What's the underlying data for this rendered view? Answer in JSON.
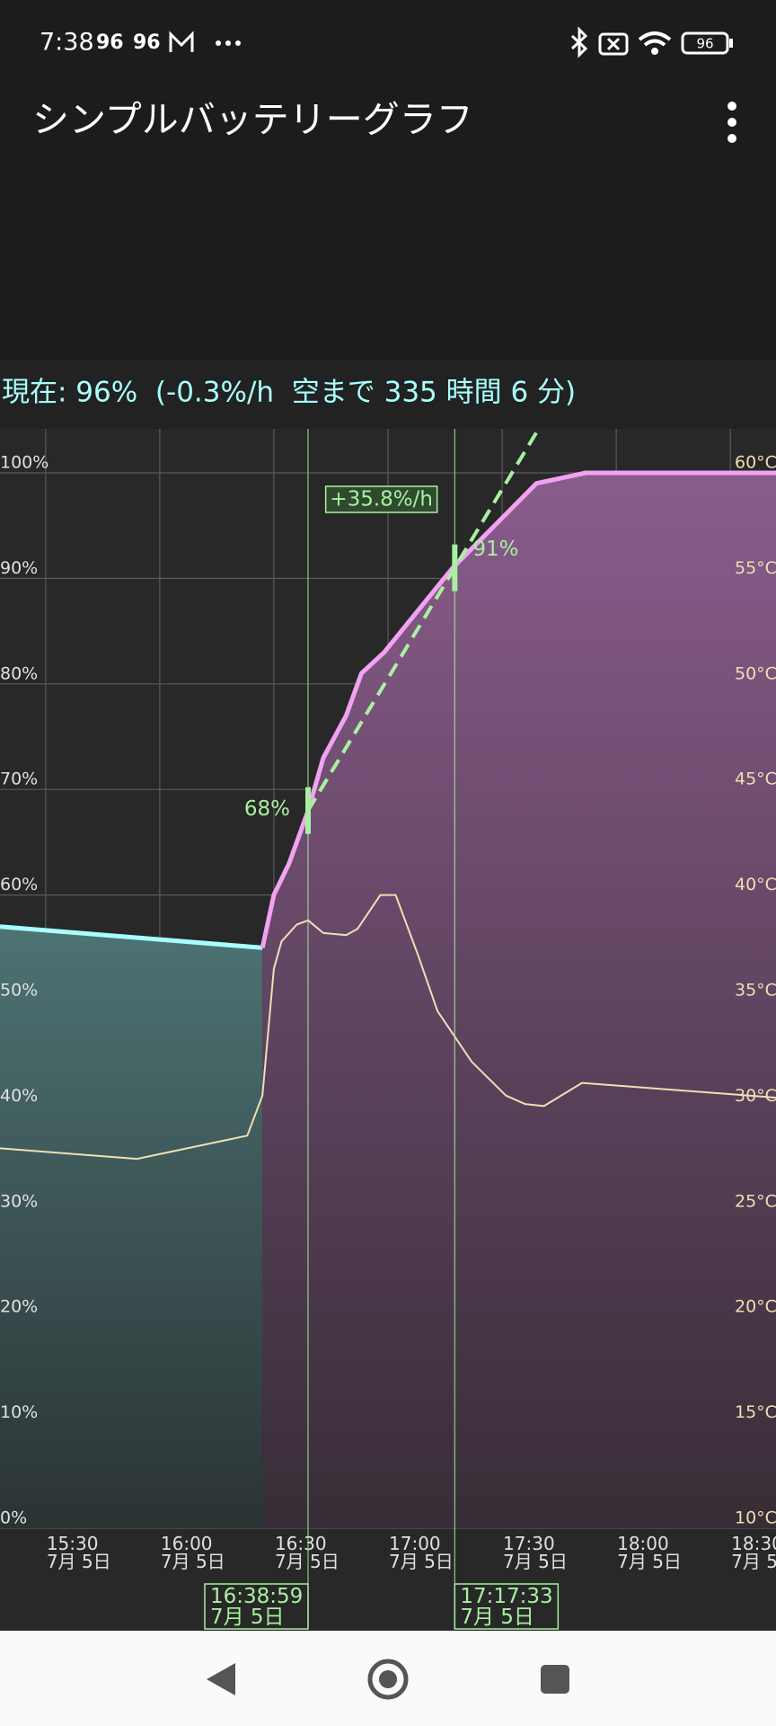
{
  "status_bar": {
    "time": "7:38",
    "indicators": [
      "96",
      "96"
    ],
    "battery": "96"
  },
  "app_bar": {
    "title": "シンプルバッテリーグラフ"
  },
  "status_line": "現在: 96%  (-0.3%/h  空まで 335 時間 6 分)",
  "chart_data": {
    "type": "line",
    "xlim": [
      "15:18",
      "18:42"
    ],
    "xticks": [
      {
        "value": "15:30",
        "label": "15:30",
        "date": "7月 5日"
      },
      {
        "value": "16:00",
        "label": "16:00",
        "date": "7月 5日"
      },
      {
        "value": "16:30",
        "label": "16:30",
        "date": "7月 5日"
      },
      {
        "value": "17:00",
        "label": "17:00",
        "date": "7月 5日"
      },
      {
        "value": "17:30",
        "label": "17:30",
        "date": "7月 5日"
      },
      {
        "value": "18:00",
        "label": "18:00",
        "date": "7月 5日"
      },
      {
        "value": "18:30",
        "label": "18:30",
        "date": "7月 5日"
      }
    ],
    "ylim": [
      0,
      100
    ],
    "yticks": [
      {
        "value": 0,
        "label": "0%"
      },
      {
        "value": 10,
        "label": "10%"
      },
      {
        "value": 20,
        "label": "20%"
      },
      {
        "value": 30,
        "label": "30%"
      },
      {
        "value": 40,
        "label": "40%"
      },
      {
        "value": 50,
        "label": "50%"
      },
      {
        "value": 60,
        "label": "60%"
      },
      {
        "value": 70,
        "label": "70%"
      },
      {
        "value": 80,
        "label": "80%"
      },
      {
        "value": 90,
        "label": "90%"
      },
      {
        "value": 100,
        "label": "100%"
      }
    ],
    "y2lim": [
      10,
      60
    ],
    "y2ticks": [
      {
        "value": 10,
        "label": "10°C"
      },
      {
        "value": 15,
        "label": "15°C"
      },
      {
        "value": 20,
        "label": "20°C"
      },
      {
        "value": 25,
        "label": "25°C"
      },
      {
        "value": 30,
        "label": "30°C"
      },
      {
        "value": 35,
        "label": "35°C"
      },
      {
        "value": 40,
        "label": "40°C"
      },
      {
        "value": 45,
        "label": "45°C"
      },
      {
        "value": 50,
        "label": "50°C"
      },
      {
        "value": 55,
        "label": "55°C"
      },
      {
        "value": 60,
        "label": "60°C"
      }
    ],
    "grid": true,
    "series": [
      {
        "color": "#a8ffff",
        "fill": [
          "#4d7373",
          "#2b3334"
        ],
        "x": [
          "15:18",
          "16:27"
        ],
        "values": [
          57,
          55
        ]
      },
      {
        "color": "#f2a2f2",
        "fill": [
          "#8a5c8c",
          "#372d36"
        ],
        "x": [
          "16:27",
          "16:30",
          "16:34",
          "16:39",
          "16:43",
          "16:49",
          "16:53",
          "16:59",
          "17:08",
          "17:17",
          "17:28",
          "17:39",
          "17:52",
          "18:42"
        ],
        "values": [
          55,
          60,
          63,
          68,
          73,
          77,
          81,
          83,
          87,
          91,
          95,
          99,
          100,
          100
        ]
      },
      {
        "color": "#f0dfb4",
        "axis": "y2",
        "x": [
          "15:18",
          "15:54",
          "16:23",
          "16:27",
          "16:30",
          "16:32",
          "16:36",
          "16:39",
          "16:43",
          "16:49",
          "16:52",
          "16:58",
          "17:02",
          "17:08",
          "17:13",
          "17:22",
          "17:31",
          "17:36",
          "17:41",
          "17:51",
          "18:42"
        ],
        "values": [
          28,
          27.5,
          28.6,
          30.5,
          36.5,
          37.8,
          38.6,
          38.8,
          38.2,
          38.1,
          38.4,
          40,
          40,
          37.1,
          34.5,
          32.1,
          30.5,
          30.1,
          30,
          31.1,
          30.4
        ]
      }
    ],
    "cursors": [
      {
        "x": "16:38:59",
        "label": "16:38:59",
        "date": "7月 5日",
        "value": 68,
        "value_label": "68%"
      },
      {
        "x": "17:17:33",
        "label": "17:17:33",
        "date": "7月 5日",
        "value": 91,
        "value_label": "91%"
      }
    ],
    "cursor_color": "#a8f0a0",
    "slope": 35.8,
    "slope_label": "+35.8%/h"
  }
}
